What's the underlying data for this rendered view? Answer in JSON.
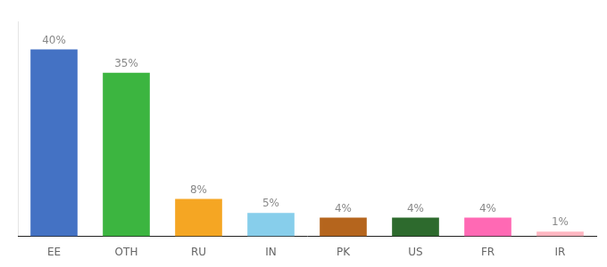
{
  "chart_data": {
    "type": "bar",
    "categories": [
      "EE",
      "OTH",
      "RU",
      "IN",
      "PK",
      "US",
      "FR",
      "IR"
    ],
    "values": [
      40,
      35,
      8,
      5,
      4,
      4,
      4,
      1
    ],
    "value_labels": [
      "40%",
      "35%",
      "8%",
      "5%",
      "4%",
      "4%",
      "4%",
      "1%"
    ],
    "colors": [
      "#4472c4",
      "#3cb540",
      "#f5a623",
      "#87ceeb",
      "#b5651d",
      "#2d6a2d",
      "#ff69b4",
      "#ffb6c1"
    ],
    "ylim": [
      0,
      46
    ],
    "data_labels": true,
    "tick_labels": "x",
    "grid": false
  }
}
